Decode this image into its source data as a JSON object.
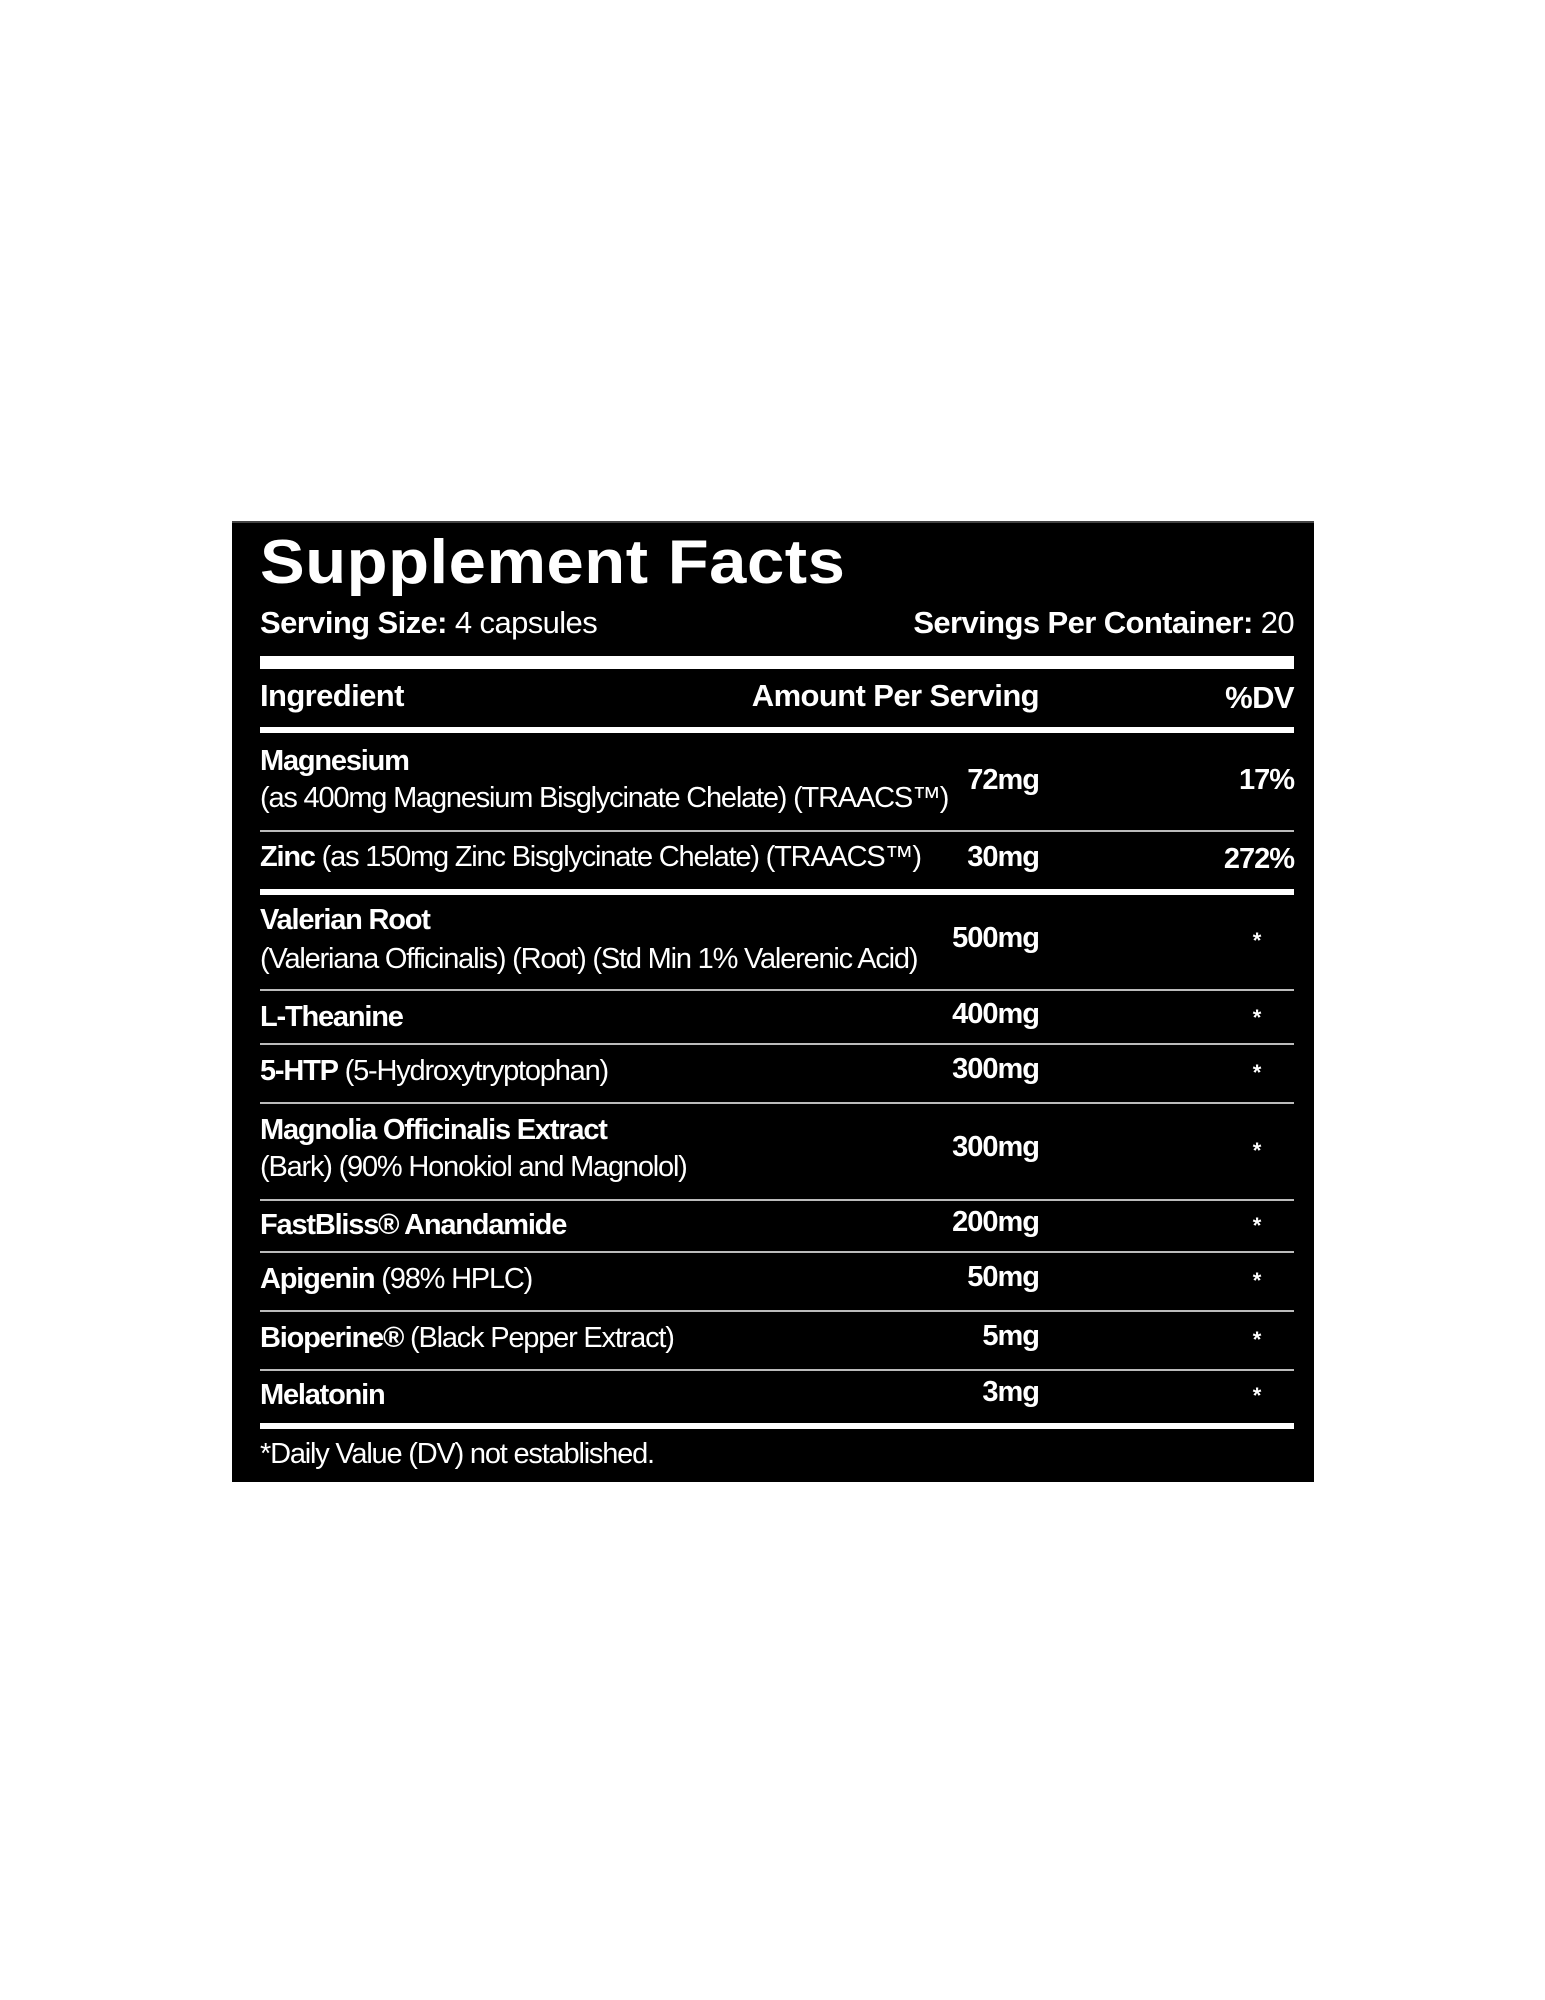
{
  "title": "Supplement Facts",
  "serving_size_label": "Serving Size:",
  "serving_size_value": " 4 capsules",
  "servings_label": "Servings Per Container:",
  "servings_value": " 20",
  "headers": {
    "ingredient": "Ingredient",
    "amount": "Amount Per Serving",
    "dv": "%DV"
  },
  "rows": [
    {
      "name": "Magnesium",
      "detail": "(as 400mg Magnesium Bisglycinate Chelate) (TRAACS™)",
      "amount": "72mg",
      "dv": "17%"
    },
    {
      "name": "Zinc",
      "detail": " (as 150mg Zinc Bisglycinate Chelate) (TRAACS™)",
      "amount": "30mg",
      "dv": "272%"
    },
    {
      "name": "Valerian Root",
      "detail": "(Valeriana Officinalis) (Root) (Std Min 1% Valerenic Acid)",
      "amount": "500mg",
      "dv": "*"
    },
    {
      "name": "L-Theanine",
      "detail": "",
      "amount": "400mg",
      "dv": "*"
    },
    {
      "name": "5-HTP",
      "detail": " (5-Hydroxytryptophan)",
      "amount": "300mg",
      "dv": "*"
    },
    {
      "name": "Magnolia Officinalis Extract",
      "detail": "(Bark) (90% Honokiol and Magnolol)",
      "amount": "300mg",
      "dv": "*"
    },
    {
      "name": "FastBliss® Anandamide",
      "detail": "",
      "amount": "200mg",
      "dv": "*"
    },
    {
      "name": "Apigenin",
      "detail": " (98% HPLC)",
      "amount": "50mg",
      "dv": "*"
    },
    {
      "name": "Bioperine®",
      "detail": " (Black Pepper Extract)",
      "amount": "5mg",
      "dv": "*"
    },
    {
      "name": "Melatonin",
      "detail": "",
      "amount": "3mg",
      "dv": "*"
    }
  ],
  "footnote": "*Daily Value (DV) not established."
}
